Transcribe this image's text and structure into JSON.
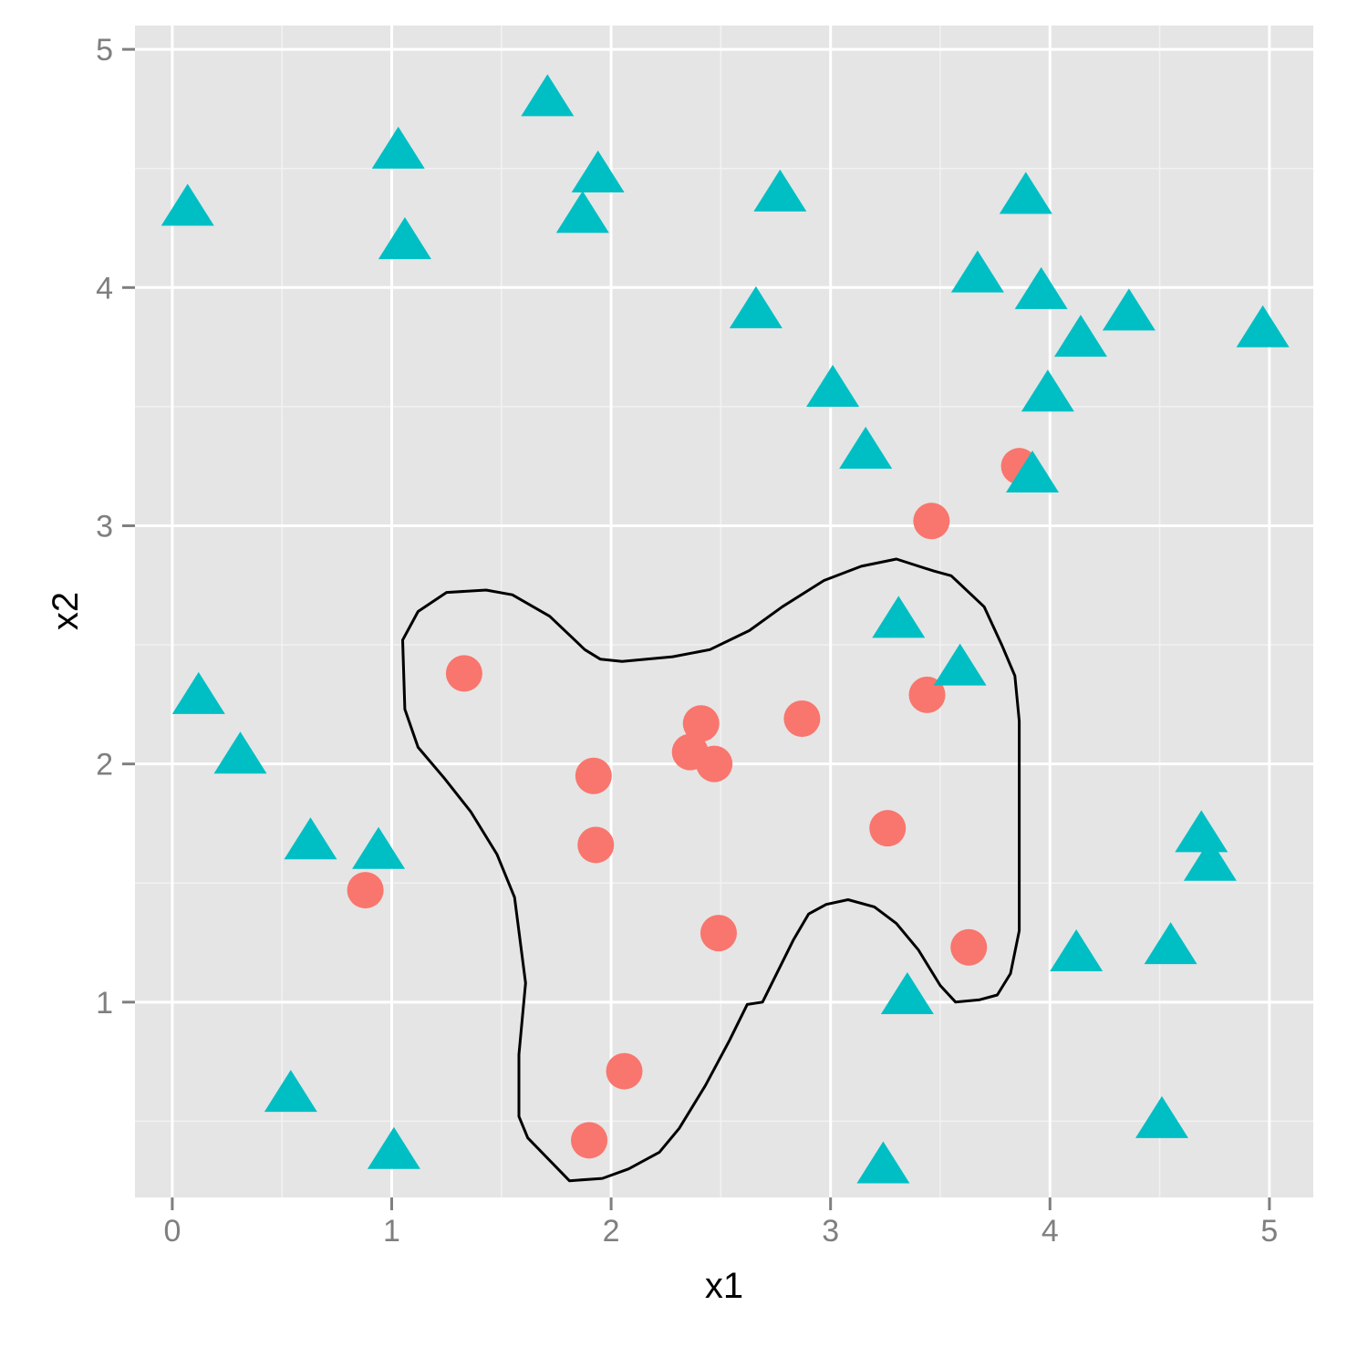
{
  "chart_data": {
    "type": "scatter",
    "title": "",
    "xlabel": "x1",
    "ylabel": "x2",
    "xlim": [
      -0.17,
      5.2
    ],
    "ylim": [
      0.18,
      5.1
    ],
    "x_ticks": [
      0,
      1,
      2,
      3,
      4,
      5
    ],
    "y_ticks": [
      1,
      2,
      3,
      4,
      5
    ],
    "x_tick_labels": [
      "0",
      "1",
      "2",
      "3",
      "4",
      "5"
    ],
    "y_tick_labels": [
      "1",
      "2",
      "3",
      "4",
      "5"
    ],
    "grid": true,
    "legend": "none",
    "colors": {
      "panel": "#e5e5e5",
      "grid_major": "#ffffff",
      "grid_minor": "#f2f2f2",
      "class_a": "#f8766d",
      "class_b": "#00bfc4",
      "boundary": "#000000",
      "tick": "#7f7f7f"
    },
    "series": [
      {
        "marker": "circle",
        "color": "#f8766d",
        "points": [
          [
            1.33,
            2.38
          ],
          [
            0.88,
            1.47
          ],
          [
            1.92,
            1.95
          ],
          [
            1.93,
            1.66
          ],
          [
            2.41,
            2.17
          ],
          [
            2.36,
            2.05
          ],
          [
            2.47,
            2.0
          ],
          [
            2.87,
            2.19
          ],
          [
            2.49,
            1.29
          ],
          [
            2.06,
            0.71
          ],
          [
            1.9,
            0.42
          ],
          [
            3.26,
            1.73
          ],
          [
            3.44,
            2.29
          ],
          [
            3.63,
            1.23
          ],
          [
            3.46,
            3.02
          ],
          [
            3.86,
            3.25
          ]
        ]
      },
      {
        "marker": "triangle",
        "color": "#00bfc4",
        "points": [
          [
            0.07,
            4.33
          ],
          [
            1.03,
            4.57
          ],
          [
            1.06,
            4.19
          ],
          [
            1.71,
            4.79
          ],
          [
            1.94,
            4.47
          ],
          [
            1.87,
            4.3
          ],
          [
            2.77,
            4.39
          ],
          [
            2.66,
            3.9
          ],
          [
            3.01,
            3.57
          ],
          [
            3.16,
            3.31
          ],
          [
            3.67,
            4.05
          ],
          [
            3.89,
            4.38
          ],
          [
            3.96,
            3.98
          ],
          [
            4.14,
            3.78
          ],
          [
            4.36,
            3.89
          ],
          [
            4.97,
            3.82
          ],
          [
            3.99,
            3.55
          ],
          [
            3.92,
            3.21
          ],
          [
            3.31,
            2.6
          ],
          [
            3.59,
            2.4
          ],
          [
            0.12,
            2.28
          ],
          [
            0.31,
            2.03
          ],
          [
            0.63,
            1.67
          ],
          [
            0.94,
            1.63
          ],
          [
            4.69,
            1.7
          ],
          [
            4.73,
            1.58
          ],
          [
            4.12,
            1.2
          ],
          [
            4.55,
            1.23
          ],
          [
            3.35,
            1.02
          ],
          [
            0.54,
            0.61
          ],
          [
            1.01,
            0.37
          ],
          [
            3.24,
            0.31
          ],
          [
            4.51,
            0.5
          ]
        ]
      }
    ],
    "decision_boundary": [
      [
        1.81,
        0.25
      ],
      [
        1.62,
        0.43
      ],
      [
        1.58,
        0.52
      ],
      [
        1.58,
        0.78
      ],
      [
        1.61,
        1.08
      ],
      [
        1.56,
        1.44
      ],
      [
        1.48,
        1.62
      ],
      [
        1.36,
        1.8
      ],
      [
        1.24,
        1.94
      ],
      [
        1.12,
        2.07
      ],
      [
        1.06,
        2.23
      ],
      [
        1.05,
        2.52
      ],
      [
        1.12,
        2.64
      ],
      [
        1.25,
        2.72
      ],
      [
        1.43,
        2.73
      ],
      [
        1.55,
        2.71
      ],
      [
        1.72,
        2.62
      ],
      [
        1.88,
        2.48
      ],
      [
        1.95,
        2.44
      ],
      [
        2.05,
        2.43
      ],
      [
        2.28,
        2.45
      ],
      [
        2.45,
        2.48
      ],
      [
        2.63,
        2.56
      ],
      [
        2.78,
        2.66
      ],
      [
        2.97,
        2.77
      ],
      [
        3.14,
        2.83
      ],
      [
        3.3,
        2.86
      ],
      [
        3.47,
        2.81
      ],
      [
        3.55,
        2.79
      ],
      [
        3.7,
        2.66
      ],
      [
        3.78,
        2.5
      ],
      [
        3.84,
        2.37
      ],
      [
        3.86,
        2.18
      ],
      [
        3.86,
        1.93
      ],
      [
        3.86,
        1.69
      ],
      [
        3.86,
        1.45
      ],
      [
        3.86,
        1.3
      ],
      [
        3.82,
        1.12
      ],
      [
        3.76,
        1.03
      ],
      [
        3.68,
        1.01
      ],
      [
        3.57,
        1.0
      ],
      [
        3.5,
        1.07
      ],
      [
        3.4,
        1.22
      ],
      [
        3.3,
        1.33
      ],
      [
        3.2,
        1.4
      ],
      [
        3.08,
        1.43
      ],
      [
        2.98,
        1.41
      ],
      [
        2.9,
        1.37
      ],
      [
        2.83,
        1.26
      ],
      [
        2.69,
        1.0
      ],
      [
        2.62,
        0.99
      ],
      [
        2.54,
        0.84
      ],
      [
        2.43,
        0.65
      ],
      [
        2.31,
        0.47
      ],
      [
        2.22,
        0.37
      ],
      [
        2.08,
        0.3
      ],
      [
        1.96,
        0.26
      ],
      [
        1.81,
        0.25
      ]
    ]
  }
}
